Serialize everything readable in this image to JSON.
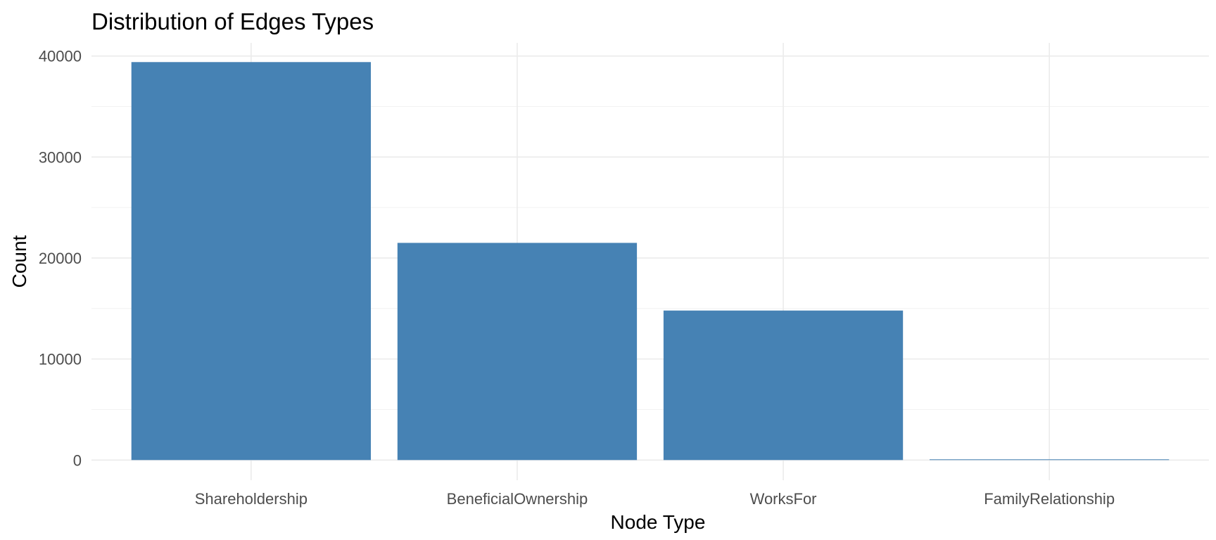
{
  "chart_data": {
    "type": "bar",
    "title": "Distribution of Edges Types",
    "xlabel": "Node Type",
    "ylabel": "Count",
    "categories": [
      "Shareholdership",
      "BeneficialOwnership",
      "WorksFor",
      "FamilyRelationship"
    ],
    "values": [
      39400,
      21500,
      14800,
      50
    ],
    "ylim": [
      -2000,
      41300
    ],
    "yticks": [
      0,
      10000,
      20000,
      30000,
      40000
    ],
    "ytick_labels": [
      "0",
      "10000",
      "20000",
      "30000",
      "40000"
    ],
    "grid": true,
    "legend": "none",
    "bar_color": "#4682B4"
  }
}
